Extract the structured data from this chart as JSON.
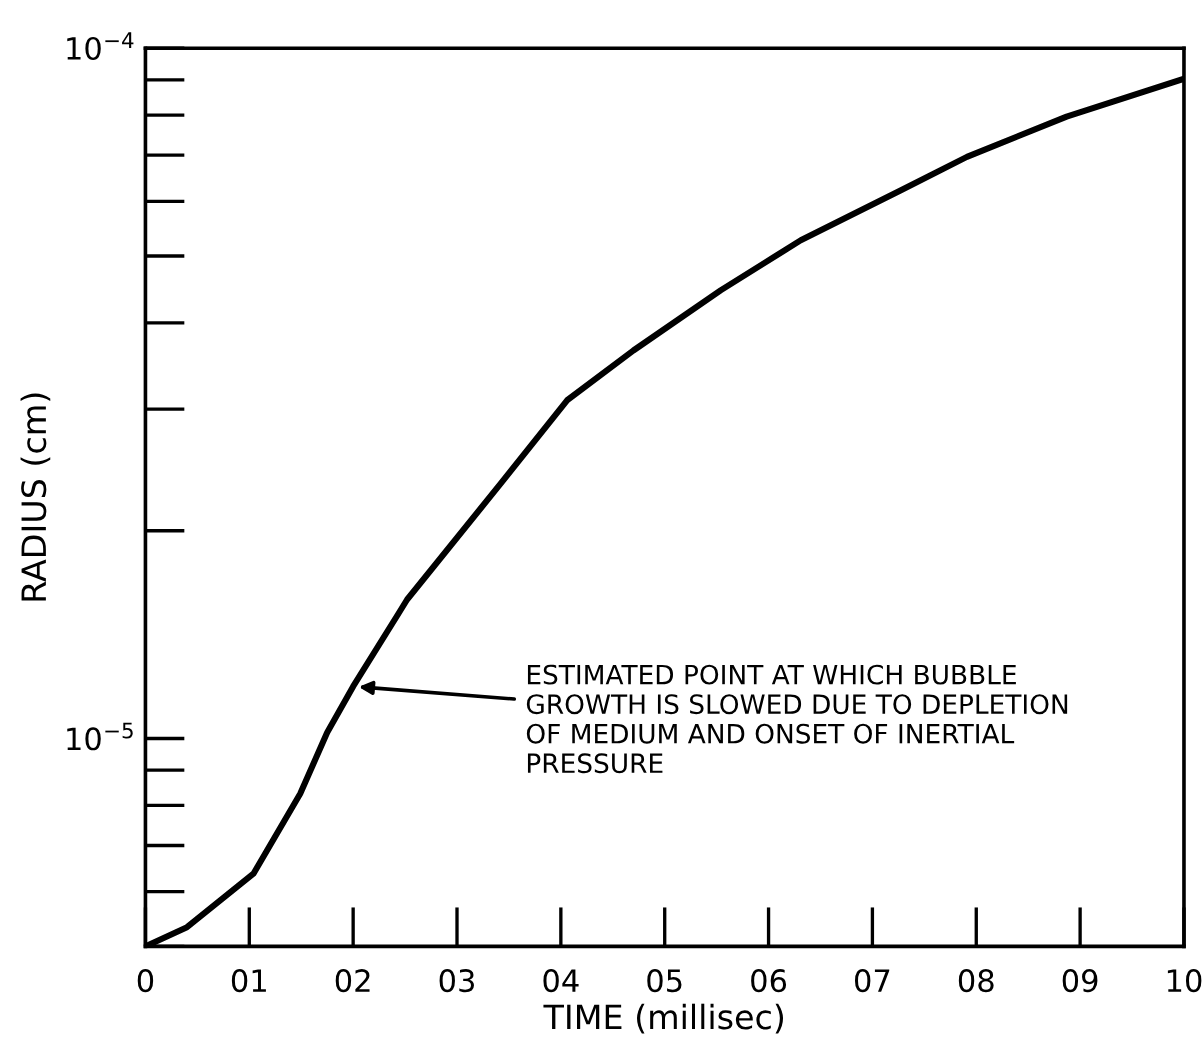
{
  "chart_data": {
    "type": "line",
    "xlabel": "TIME (millisec)",
    "ylabel": "RADIUS (cm)",
    "log": "y",
    "grid": false,
    "marker": "none",
    "line_style": "solid",
    "x": [
      0,
      0.4,
      1.04,
      1.49,
      1.75,
      2.0,
      2.44,
      2.52,
      3.42,
      4.06,
      4.7,
      5.54,
      6.31,
      7.27,
      7.91,
      8.87,
      10.0
    ],
    "series": [
      {
        "color": "#000000",
        "values": [
          5e-06,
          5.33e-06,
          6.37e-06,
          8.32e-06,
          1.02e-05,
          1.19e-05,
          1.52e-05,
          1.59e-05,
          2.34e-05,
          3.09e-05,
          3.65e-05,
          4.46e-05,
          5.27e-05,
          6.22e-05,
          6.96e-05,
          7.96e-05,
          9.03e-05
        ]
      }
    ],
    "xlim": [
      0,
      10
    ],
    "ylim": [
      5e-06,
      0.0001
    ],
    "xticks": [
      0,
      {
        "value": 1,
        "label": "01"
      },
      {
        "value": 2,
        "label": "02"
      },
      {
        "value": 3,
        "label": "03"
      },
      {
        "value": 4,
        "label": "04"
      },
      {
        "value": 5,
        "label": "05"
      },
      {
        "value": 6,
        "label": "06"
      },
      {
        "value": 7,
        "label": "07"
      },
      {
        "value": 8,
        "label": "08"
      },
      {
        "value": 9,
        "label": "09"
      },
      10
    ],
    "yticks": [
      {
        "value": 1e-05,
        "label": "10$^{−5}$"
      },
      {
        "value": 0.0001,
        "label": "10$^{−4}$"
      }
    ],
    "annotations": [
      {
        "text": "ESTIMATED POINT AT WHICH BUBBLE\nGROWTH IS SLOWED DUE TO DEPLETION\nOF MEDIUM AND ONSET OF INERTIAL\nPRESSURE",
        "x": 2,
        "y": 1.19e-05
      }
    ]
  }
}
